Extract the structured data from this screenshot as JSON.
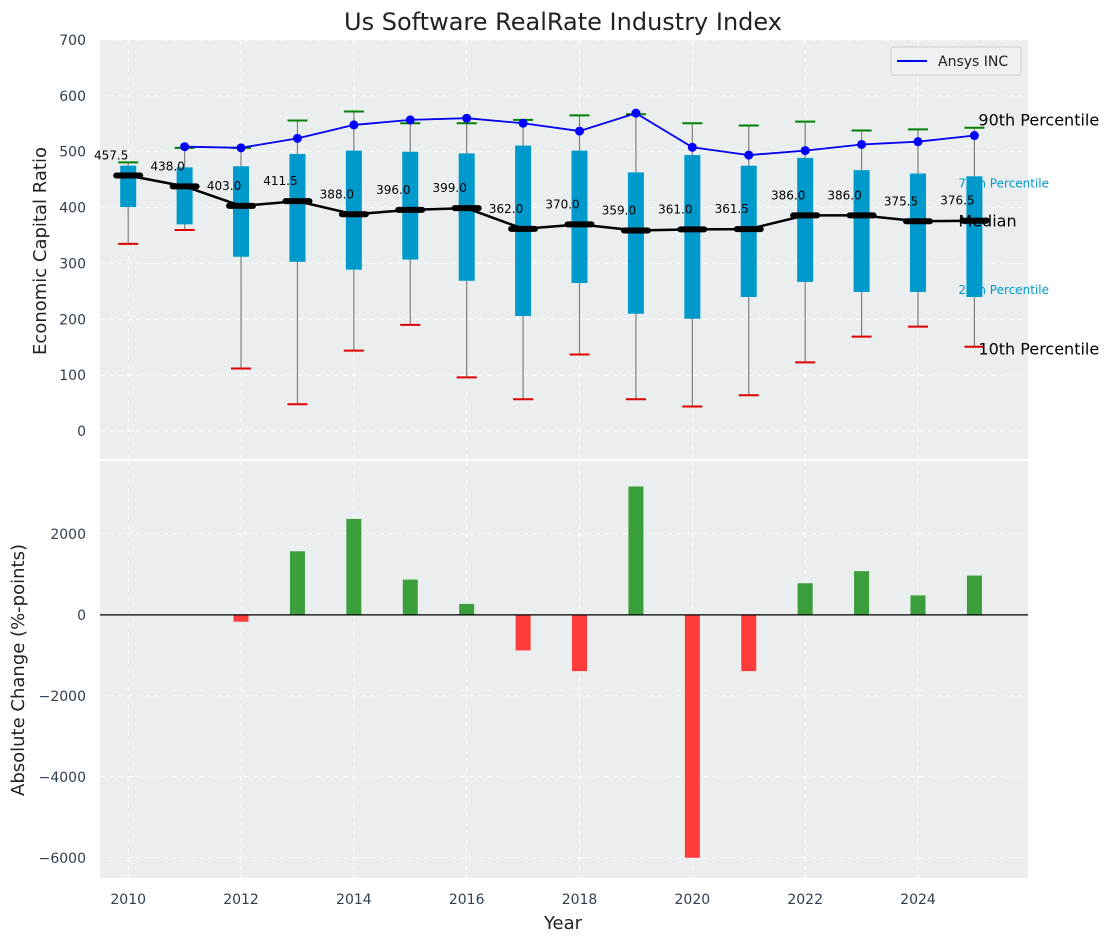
{
  "chart_data": {
    "type": "boxplot+line+bar",
    "title": "Us Software RealRate Industry Index",
    "xlabel": "Year",
    "years": [
      2010,
      2011,
      2012,
      2013,
      2014,
      2015,
      2016,
      2017,
      2018,
      2019,
      2020,
      2021,
      2022,
      2023,
      2024,
      2025
    ],
    "x_ticks": [
      2010,
      2012,
      2014,
      2016,
      2018,
      2020,
      2022,
      2024
    ],
    "top": {
      "ylabel": "Economic Capital Ratio",
      "ylim": [
        -50,
        700
      ],
      "y_ticks": [
        0,
        100,
        200,
        300,
        400,
        500,
        600,
        700
      ],
      "p10": [
        335,
        360,
        112,
        48,
        144,
        190,
        96,
        57,
        137,
        57,
        44,
        64,
        123,
        169,
        187,
        151
      ],
      "p25": [
        401,
        370,
        312,
        303,
        289,
        307,
        269,
        206,
        265,
        210,
        201,
        240,
        267,
        249,
        249,
        240
      ],
      "median": [
        457.5,
        438.0,
        403.0,
        411.5,
        388.0,
        396.0,
        399.0,
        362.0,
        370.0,
        359.0,
        361.0,
        361.5,
        386.0,
        386.0,
        375.5,
        376.5
      ],
      "median_labels": [
        "457.5",
        "438.0",
        "403.0",
        "411.5",
        "388.0",
        "396.0",
        "399.0",
        "362.0",
        "370.0",
        "359.0",
        "361.0",
        "361.5",
        "386.0",
        "386.0",
        "375.5",
        "376.5"
      ],
      "p75": [
        475,
        472,
        474,
        496,
        502,
        500,
        497,
        511,
        502,
        463,
        494,
        475,
        489,
        467,
        461,
        456
      ],
      "p90": [
        481,
        507,
        507,
        556,
        572,
        551,
        551,
        557,
        565,
        567,
        551,
        547,
        554,
        538,
        540,
        543
      ],
      "company": {
        "name": "Ansys INC",
        "years": [
          2011,
          2012,
          2013,
          2014,
          2015,
          2016,
          2017,
          2018,
          2019,
          2020,
          2021,
          2022,
          2023,
          2024,
          2025
        ],
        "values": [
          509,
          507,
          524,
          548,
          557,
          560,
          551,
          537,
          569,
          508,
          494,
          502,
          513,
          518,
          529
        ]
      },
      "legend": {
        "label": "Ansys INC",
        "position": "upper right"
      },
      "annotations": {
        "p90": "90th Percentile",
        "p75": "75th Percentile",
        "median": "Median",
        "p25": "25th Percentile",
        "p10": "10th Percentile"
      }
    },
    "bottom": {
      "ylabel": "Absolute Change (%-points)",
      "ylim": [
        -6500,
        3800
      ],
      "y_ticks": [
        2000,
        0,
        -2000,
        -4000,
        -6000
      ],
      "y_tick_labels": [
        "2000",
        "0",
        "−2000",
        "−4000",
        "−6000"
      ],
      "bar_years": [
        2012,
        2013,
        2014,
        2015,
        2016,
        2017,
        2018,
        2019,
        2020,
        2021,
        2022,
        2023,
        2024,
        2025
      ],
      "values": [
        -170,
        1570,
        2370,
        870,
        270,
        -880,
        -1390,
        3170,
        -6000,
        -1390,
        780,
        1080,
        480,
        970
      ]
    },
    "colors": {
      "panel_bg": "#eaeeee",
      "box_fill": "#0099cc",
      "whisker": "#808080",
      "p90_cap": "#008000",
      "p10_cap": "#e00000",
      "median_line": "#000000",
      "company_line": "#0000ee",
      "company_marker": "#0000ff",
      "positive_bar": "#3a9e3a",
      "negative_bar": "#ff3b3b",
      "percentile_label": "#0099cc",
      "tick_text": "#2e3f50",
      "grid": "#ffffff"
    },
    "grid": true
  }
}
